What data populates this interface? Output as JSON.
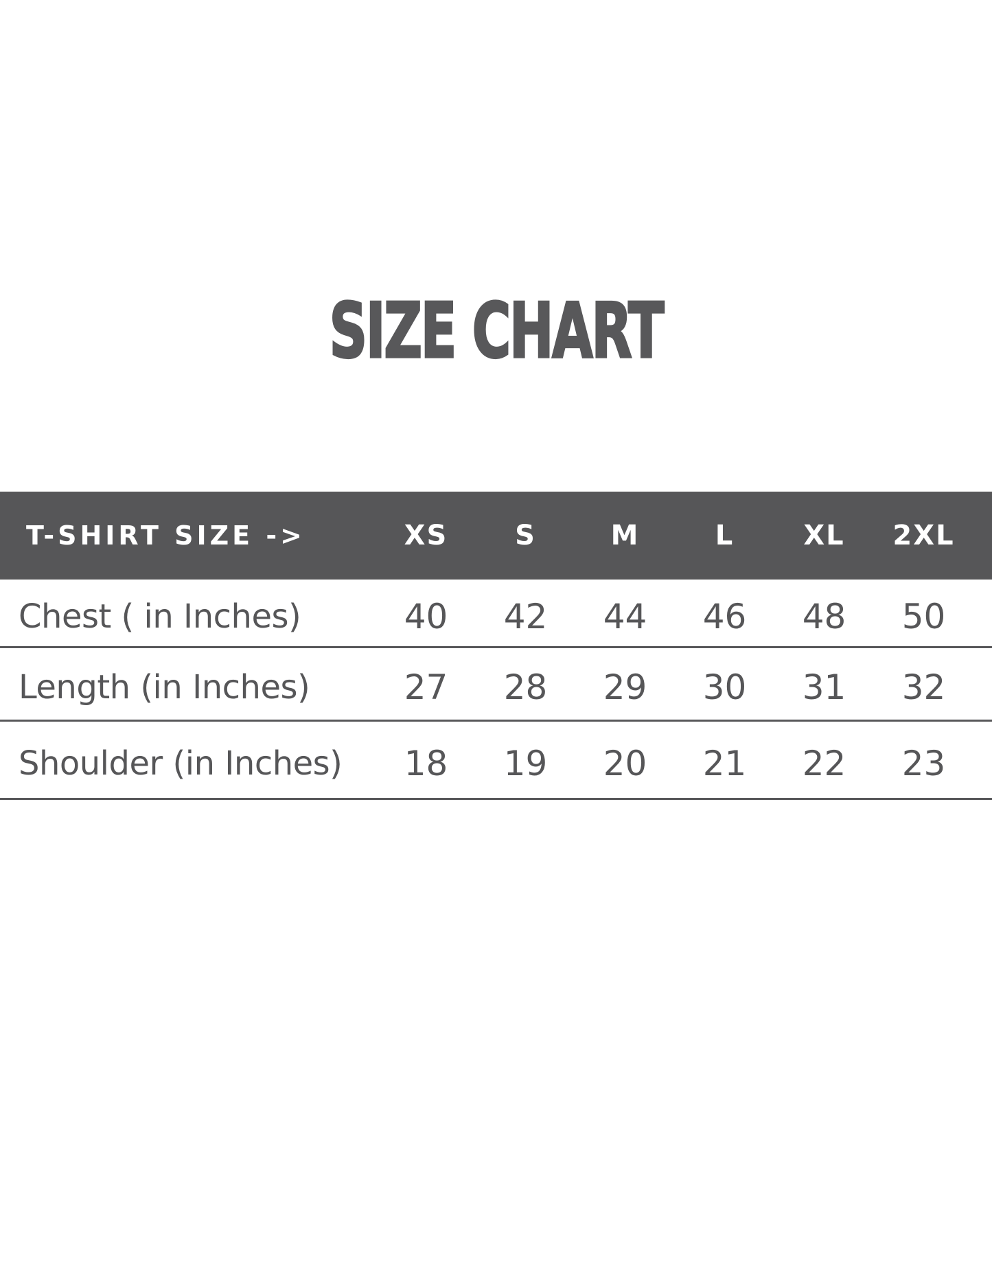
{
  "title": "SIZE CHART",
  "colors": {
    "header_band": "#565658",
    "header_text": "#ffffff",
    "body_text": "#565658",
    "title_text": "#58585a",
    "row_divider": "#58585a",
    "background": "#ffffff"
  },
  "chart_data": {
    "type": "table",
    "title": "SIZE CHART",
    "header": {
      "label": "T-SHIRT SIZE ->",
      "sizes": [
        "XS",
        "S",
        "M",
        "L",
        "XL",
        "2XL"
      ]
    },
    "rows": [
      {
        "label": "Chest ( in Inches)",
        "values": [
          "40",
          "42",
          "44",
          "46",
          "48",
          "50"
        ]
      },
      {
        "label": "Length (in Inches)",
        "values": [
          "27",
          "28",
          "29",
          "30",
          "31",
          "32"
        ]
      },
      {
        "label": "Shoulder (in Inches)",
        "values": [
          "18",
          "19",
          "20",
          "21",
          "22",
          "23"
        ]
      }
    ],
    "layout": {
      "legend": "none",
      "grid": "horizontal-rules-only",
      "header_row_filled": true
    }
  }
}
